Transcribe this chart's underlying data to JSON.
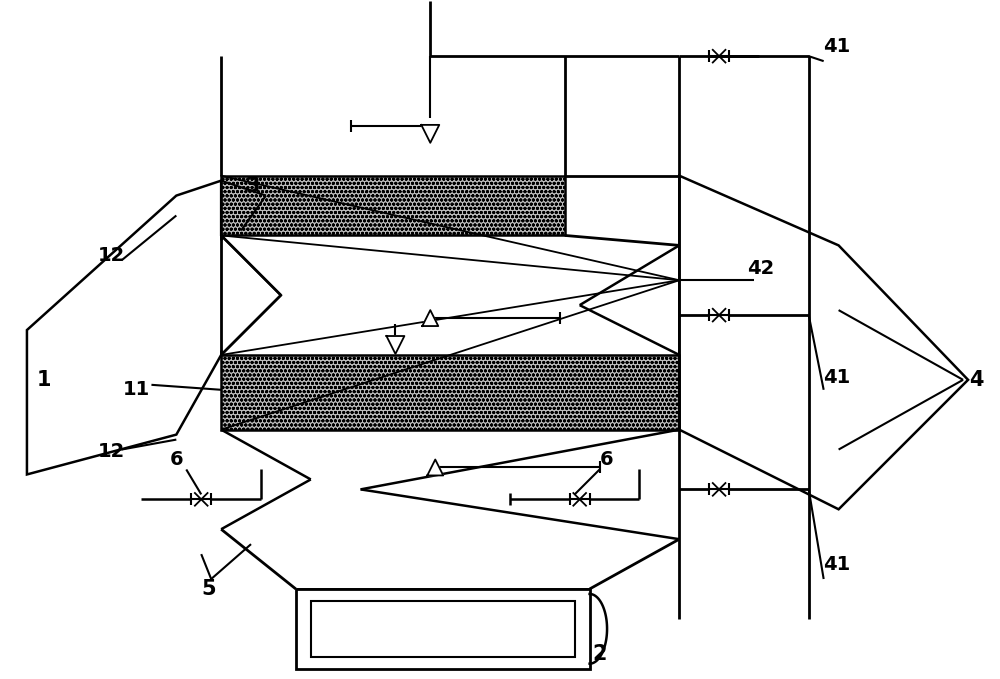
{
  "bg_color": "#ffffff",
  "figsize": [
    10.0,
    6.79
  ],
  "dpi": 100
}
